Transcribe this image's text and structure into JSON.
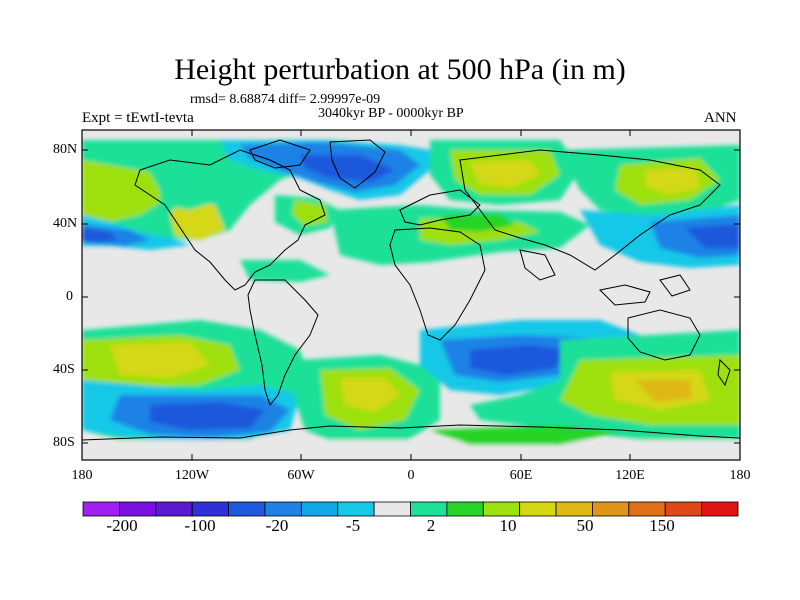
{
  "title": "Height perturbation at 500 hPa (in m)",
  "stats": "rmsd= 8.68874 diff= 2.99997e-09",
  "left_label": "Expt = tEwtI-tevta",
  "center_label": "3040kyr BP - 0000kyr BP",
  "right_label": "ANN",
  "lat_ticks": [
    "80N",
    "40N",
    "0",
    "40S",
    "80S"
  ],
  "lon_ticks": [
    "180",
    "120W",
    "60W",
    "0",
    "60E",
    "120E",
    "180"
  ],
  "colorbar": {
    "colors": [
      "#a020f0",
      "#7a10e0",
      "#5a1ad0",
      "#3030d8",
      "#1e58dc",
      "#1e82e6",
      "#12a8e8",
      "#18c8e8",
      "#e8e8e8",
      "#1ee098",
      "#28d428",
      "#9ee010",
      "#d4d814",
      "#e0b814",
      "#e09418",
      "#e07018",
      "#e04818",
      "#e01414"
    ],
    "labels": [
      "-200",
      "-100",
      "-20",
      "-5",
      "2",
      "10",
      "50",
      "150"
    ]
  }
}
